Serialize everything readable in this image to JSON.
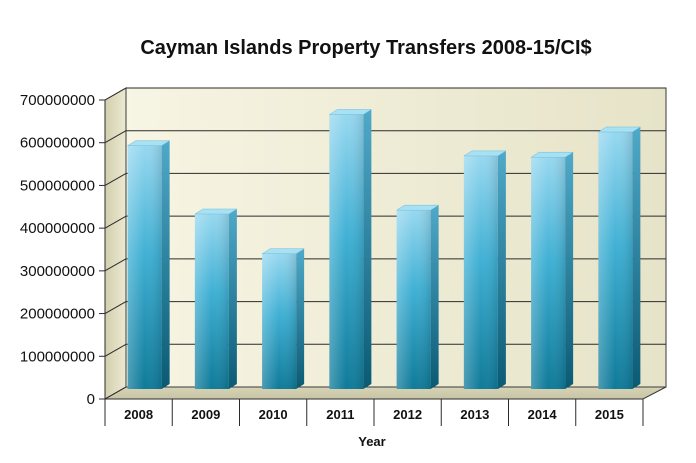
{
  "chart_data": {
    "type": "bar",
    "title": "Cayman Islands Property Transfers 2008-15/CI$",
    "xlabel": "Year",
    "ylabel": "",
    "categories": [
      "2008",
      "2009",
      "2010",
      "2011",
      "2012",
      "2013",
      "2014",
      "2015"
    ],
    "values": [
      565000000,
      405000000,
      312000000,
      638000000,
      414000000,
      541000000,
      538000000,
      597000000
    ],
    "ylim": [
      0,
      700000000
    ],
    "yticks": [
      "0",
      "100000000",
      "200000000",
      "300000000",
      "400000000",
      "500000000",
      "600000000",
      "700000000"
    ],
    "grid": true,
    "legend": "none",
    "colors": {
      "bar_light": "#8fd3ee",
      "bar_mid": "#2a9fc4",
      "bar_dark": "#0e6f8e",
      "bar_side": "#0a5670",
      "bar_top": "#9fdcf2",
      "wall_light": "#fbfaf0",
      "wall_dark": "#e4e1c4"
    }
  }
}
